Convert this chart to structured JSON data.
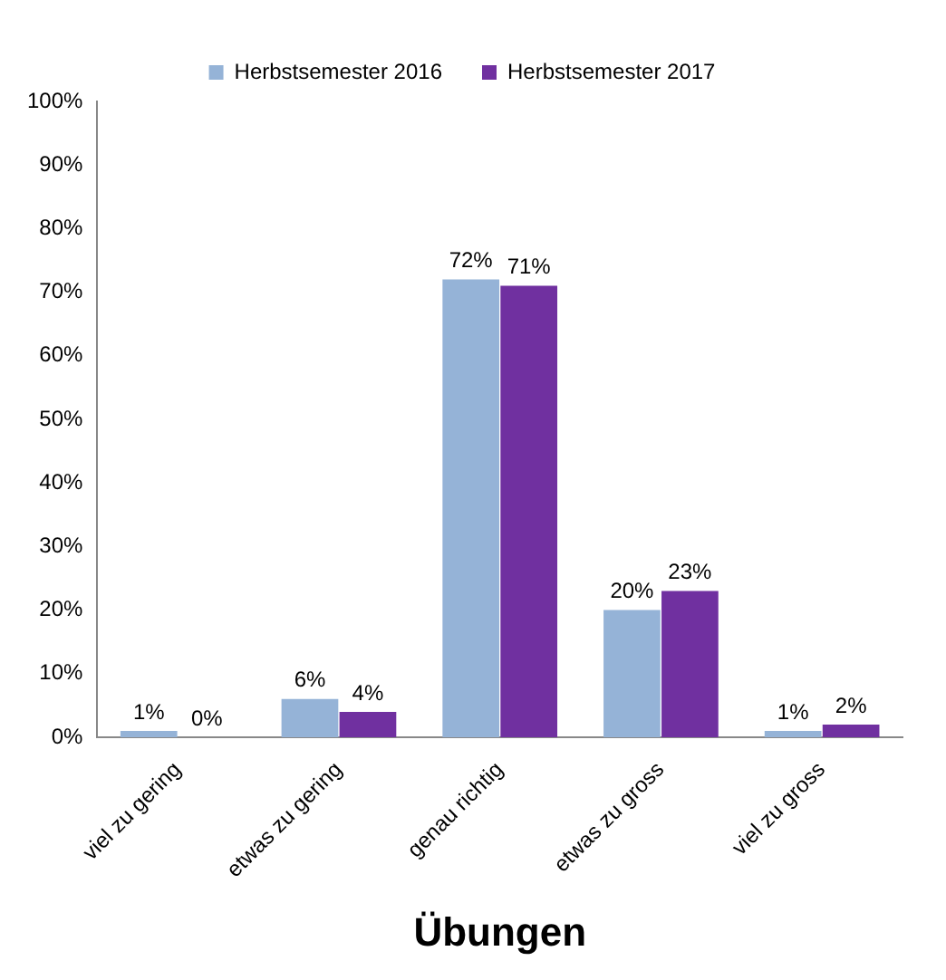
{
  "chart_data": {
    "type": "bar",
    "xlabel": "Übungen",
    "categories": [
      "viel zu gering",
      "etwas zu gering",
      "genau richtig",
      "etwas zu gross",
      "viel zu gross"
    ],
    "series": [
      {
        "name": "Herbstsemester 2016",
        "color": "#95b3d7",
        "values": [
          1,
          6,
          72,
          20,
          1
        ]
      },
      {
        "name": "Herbstsemester 2017",
        "color": "#7030a0",
        "values": [
          0,
          4,
          71,
          23,
          2
        ]
      }
    ],
    "value_labels": [
      [
        "1%",
        "6%",
        "72%",
        "20%",
        "1%"
      ],
      [
        "0%",
        "4%",
        "71%",
        "23%",
        "2%"
      ]
    ],
    "ylim": [
      0,
      100
    ],
    "yticks": [
      {
        "value": 0,
        "label": "0%"
      },
      {
        "value": 10,
        "label": "10%"
      },
      {
        "value": 20,
        "label": "20%"
      },
      {
        "value": 30,
        "label": "30%"
      },
      {
        "value": 40,
        "label": "40%"
      },
      {
        "value": 50,
        "label": "50%"
      },
      {
        "value": 60,
        "label": "60%"
      },
      {
        "value": 70,
        "label": "70%"
      },
      {
        "value": 80,
        "label": "80%"
      },
      {
        "value": 90,
        "label": "90%"
      },
      {
        "value": 100,
        "label": "100%"
      }
    ],
    "grid": false,
    "legend": "top"
  }
}
